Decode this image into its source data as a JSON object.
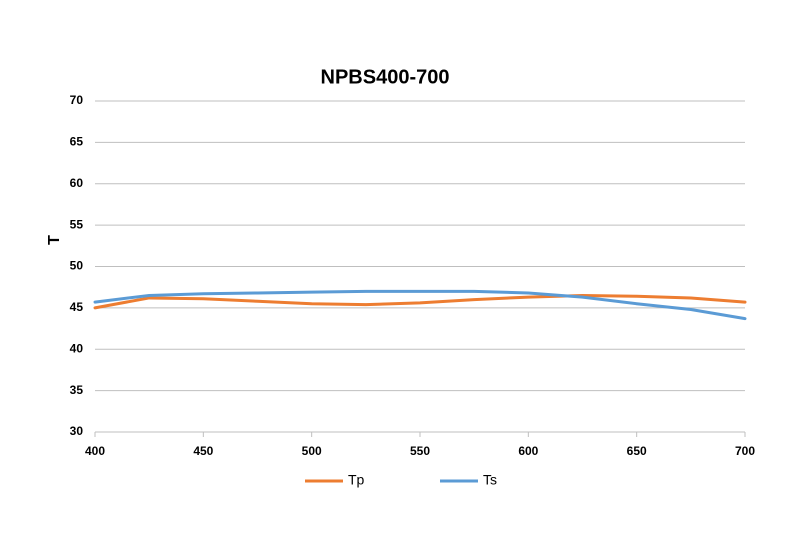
{
  "chart_data": {
    "type": "line",
    "title": "NPBS400-700",
    "y_label": "T",
    "x": [
      400,
      425,
      450,
      475,
      500,
      525,
      550,
      575,
      600,
      625,
      650,
      675,
      700
    ],
    "series": [
      {
        "name": "Tp",
        "color": "#ed7d31",
        "values": [
          45.0,
          46.2,
          46.1,
          45.8,
          45.5,
          45.4,
          45.6,
          46.0,
          46.3,
          46.5,
          46.4,
          46.2,
          45.7
        ]
      },
      {
        "name": "Ts",
        "color": "#5b9bd5",
        "values": [
          45.7,
          46.5,
          46.7,
          46.8,
          46.9,
          47.0,
          47.0,
          47.0,
          46.8,
          46.3,
          45.5,
          44.8,
          43.7
        ]
      }
    ],
    "xlim": [
      400,
      700
    ],
    "xticks": [
      400,
      450,
      500,
      550,
      600,
      650,
      700
    ],
    "ylim": [
      30,
      70
    ],
    "yticks": [
      30,
      35,
      40,
      45,
      50,
      55,
      60,
      65,
      70
    ],
    "grid": true,
    "legend": "bottom"
  }
}
